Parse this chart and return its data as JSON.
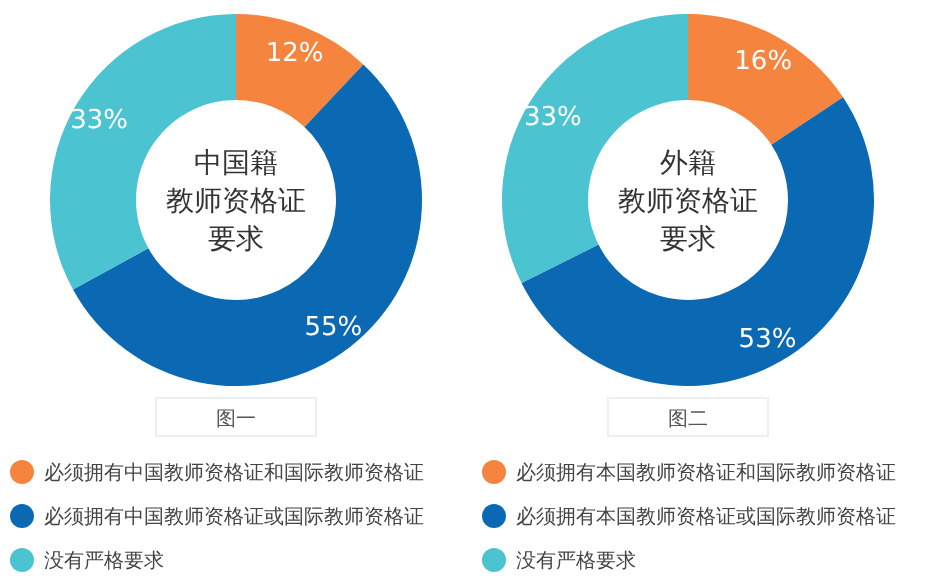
{
  "chart_data": [
    {
      "type": "donut",
      "title": "中国籍",
      "subtitle": "教师资格证要求",
      "categories": [
        "必须拥有中国教师资格证和国际教师资格证",
        "必须拥有中国教师资格证或国际教师资格证",
        "没有严格要求"
      ],
      "values": [
        12,
        55,
        33
      ],
      "value_labels": [
        "12%",
        "55%",
        "33%"
      ],
      "colors": [
        "#f5843f",
        "#0b68b3",
        "#4bc3d1"
      ],
      "annotations": [
        "图一"
      ],
      "legend": "bottom"
    },
    {
      "type": "donut",
      "title": "外籍",
      "subtitle": "教师资格证要求",
      "categories": [
        "必须拥有本国教师资格证和国际教师资格证",
        "必须拥有本国教师资格证或国际教师资格证",
        "没有严格要求"
      ],
      "values": [
        16,
        53,
        33
      ],
      "value_labels": [
        "16%",
        "53%",
        "33%"
      ],
      "colors": [
        "#f5843f",
        "#0b68b3",
        "#4bc3d1"
      ],
      "annotations": [
        "图二"
      ],
      "legend": "bottom"
    }
  ]
}
